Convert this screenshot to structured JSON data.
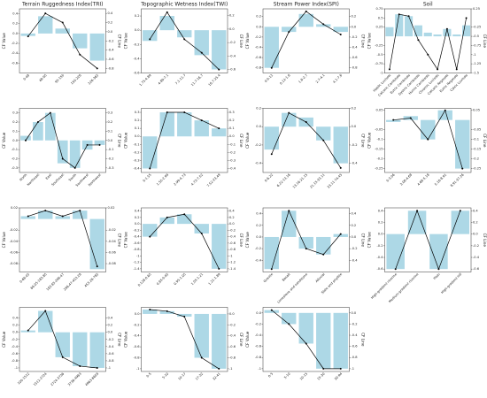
{
  "chart_data": [
    {
      "type": "bar_line",
      "title": "Terrain Ruggedness Index(TRI)",
      "ylabel": "CF Value",
      "y2label": "CF Line",
      "categories": [
        "0-48",
        "48-95",
        "95-150",
        "150-226",
        "226-365"
      ],
      "series": [
        {
          "name": "CF Value",
          "color": "#add8e6",
          "values": [
            -0.05,
            0.35,
            0.1,
            -0.3,
            -0.55
          ]
        },
        {
          "name": "CF Line",
          "color": "#000000",
          "axis": "y2",
          "values": [
            -0.1,
            0.4,
            0.2,
            -0.5,
            -0.8
          ]
        }
      ],
      "ylim": [
        -0.8,
        0.5
      ],
      "yticks": [
        -0.6,
        -0.4,
        -0.2,
        {
          "value": 0,
          "label": "0.0"
        },
        0.2,
        0.4
      ],
      "y2lim": [
        -0.9,
        0.5
      ],
      "y2ticks": [
        -0.8,
        -0.6,
        -0.4,
        -0.2,
        {
          "value": 0,
          "label": "0.0"
        },
        0.2,
        0.4
      ]
    },
    {
      "type": "bar_line",
      "title": "Topographic Wetness Index(TWI)",
      "ylabel": "CF Value",
      "y2label": "CF Line",
      "categories": [
        "1.75-4.89",
        "4.89-7.1",
        "7.1-11.7",
        "11.7-16.7",
        "16.7-25.4"
      ],
      "series": [
        {
          "name": "CF Value",
          "color": "#add8e6",
          "values": [
            -0.15,
            0.2,
            -0.1,
            -0.35,
            -0.55
          ]
        },
        {
          "name": "CF Line",
          "color": "#000000",
          "axis": "y2",
          "values": [
            -0.15,
            0.25,
            -0.15,
            -0.35,
            -0.6
          ]
        }
      ],
      "ylim": [
        -0.6,
        0.3
      ],
      "yticks": [
        -0.6,
        -0.4,
        -0.2,
        {
          "value": 0,
          "label": "0.0"
        },
        0.2
      ],
      "y2lim": [
        -0.65,
        0.3
      ],
      "y2ticks": [
        -0.6,
        -0.4,
        -0.2,
        {
          "value": 0,
          "label": "0.0"
        },
        0.2
      ]
    },
    {
      "type": "bar_line",
      "title": "Stream Power Index(SPI)",
      "ylabel": "CF Value",
      "y2label": "CF Line",
      "categories": [
        "0-0.12",
        "0.12-1.6",
        "1.6-2.7",
        "2.7-4.1",
        "4.1-7.6"
      ],
      "series": [
        {
          "name": "CF Value",
          "color": "#add8e6",
          "values": [
            -0.8,
            -0.1,
            0.25,
            0.05,
            -0.1
          ]
        },
        {
          "name": "CF Line",
          "color": "#000000",
          "axis": "y2",
          "values": [
            -0.8,
            -0.1,
            0.3,
            0.05,
            -0.15
          ]
        }
      ],
      "ylim": [
        -0.9,
        0.35
      ],
      "yticks": [
        -0.8,
        -0.6,
        -0.4,
        -0.2,
        {
          "value": 0,
          "label": "0.0"
        },
        0.2
      ],
      "y2lim": [
        -0.9,
        0.35
      ],
      "y2ticks": [
        -0.8,
        -0.6,
        -0.4,
        -0.2,
        {
          "value": 0,
          "label": "0.0"
        },
        0.2
      ]
    },
    {
      "type": "bar_line",
      "title": "Soil",
      "ylabel": "CF Value",
      "y2label": "CF Line",
      "categories": [
        "Haplic Luvisols",
        "Calcaric Cambisols",
        "Eutric Cambisols",
        "Dystric Cambisols",
        "Humic Cambisols",
        "Chromic Luvisols",
        "Calcaric Regosols",
        "Eutric Regosols",
        "Calcic Luvisols"
      ],
      "series": [
        {
          "name": "CF Value",
          "color": "#add8e6",
          "values": [
            0.25,
            0.6,
            0.55,
            0.3,
            0.1,
            0.05,
            0.2,
            0.05,
            0.3
          ]
        },
        {
          "name": "CF Line",
          "color": "#000000",
          "axis": "y2",
          "values": [
            -1.4,
            0.1,
            0.05,
            -0.6,
            -1,
            -1.4,
            -0.3,
            -1.4,
            0
          ]
        }
      ],
      "ylim": [
        -1,
        0.75
      ],
      "yticks": [
        -1,
        -0.75,
        -0.5,
        -0.25,
        0.25,
        0.5,
        0.75
      ],
      "y2lim": [
        -1.5,
        0.25
      ],
      "y2ticks": [
        -1.5,
        -1.25,
        -1,
        -0.75,
        -0.5,
        -0.25,
        0.25
      ]
    },
    {
      "type": "bar_line",
      "ylabel": "CF Value",
      "y2label": "CF Line",
      "categories": [
        "North",
        "Northeast",
        "East",
        "Southeast",
        "South",
        "Southwest",
        "Northwest"
      ],
      "series": [
        {
          "name": "CF Value",
          "color": "#add8e6",
          "values": [
            0.05,
            0.2,
            0.3,
            -0.25,
            -0.3,
            -0.1,
            -0.05
          ]
        },
        {
          "name": "CF Line",
          "color": "#000000",
          "axis": "y2",
          "values": [
            0,
            0.2,
            0.3,
            -0.2,
            -0.3,
            -0.05,
            -0.05
          ]
        }
      ],
      "ylim": [
        -0.35,
        0.35
      ],
      "yticks": [
        -0.3,
        -0.2,
        -0.1,
        {
          "value": 0,
          "label": "0.0"
        },
        0.1,
        0.2,
        0.3
      ],
      "y2lim": [
        -0.35,
        0.35
      ],
      "y2ticks": [
        -0.3,
        -0.2,
        -0.1,
        {
          "value": 0,
          "label": "0.0"
        },
        0.1,
        0.2,
        0.3
      ]
    },
    {
      "type": "bar_line",
      "ylabel": "CF Value",
      "y2label": "CF Line",
      "categories": [
        "0-1.55",
        "1.55-2.99",
        "2.99-4.73",
        "4.73-7.52",
        "7.52-23.49"
      ],
      "series": [
        {
          "name": "CF Value",
          "color": "#add8e6",
          "values": [
            -0.4,
            0.3,
            0.3,
            0.2,
            0.1
          ]
        },
        {
          "name": "CF Line",
          "color": "#000000",
          "axis": "y2",
          "values": [
            -0.4,
            0.3,
            0.3,
            0.2,
            0.1
          ]
        }
      ],
      "ylim": [
        -0.45,
        0.35
      ],
      "yticks": [
        -0.4,
        -0.3,
        -0.2,
        -0.1,
        {
          "value": 0,
          "label": "0.0"
        },
        0.1,
        0.2,
        0.3
      ],
      "y2lim": [
        -0.45,
        0.35
      ],
      "y2ticks": [
        -0.4,
        -0.3,
        -0.2,
        -0.1,
        {
          "value": 0,
          "label": "0.0"
        },
        0.1,
        0.2,
        0.3
      ]
    },
    {
      "type": "bar_line",
      "ylabel": "CF Value",
      "y2label": "CF Line",
      "categories": [
        "0-6.22",
        "6.22-13.16",
        "13.16-21.15",
        "21.15-33.11",
        "33.11-74.45"
      ],
      "series": [
        {
          "name": "CF Value",
          "color": "#add8e6",
          "values": [
            -0.25,
            0.15,
            0.1,
            -0.15,
            -0.4
          ]
        },
        {
          "name": "CF Line",
          "color": "#000000",
          "axis": "y2",
          "values": [
            -0.3,
            0.15,
            0.05,
            -0.15,
            -0.45
          ]
        }
      ],
      "ylim": [
        -0.5,
        0.2
      ],
      "yticks": [
        -0.4,
        -0.2,
        {
          "value": 0,
          "label": "0.0"
        },
        0.2
      ],
      "y2lim": [
        -0.5,
        0.2
      ],
      "y2ticks": [
        -0.4,
        -0.2,
        {
          "value": 0,
          "label": "0.0"
        },
        0.2
      ]
    },
    {
      "type": "bar_line",
      "ylabel": "CF Value",
      "y2label": "CF Line",
      "categories": [
        "0-3.06",
        "3.06-4.68",
        "4.68-5.18",
        "5.18-8.91",
        "8.91-37.26"
      ],
      "series": [
        {
          "name": "CF Value",
          "color": "#add8e6",
          "values": [
            -0.01,
            0.02,
            -0.1,
            0.05,
            -0.25
          ]
        },
        {
          "name": "CF Line",
          "color": "#000000",
          "axis": "y2",
          "values": [
            0,
            0.01,
            -0.1,
            0.05,
            -0.25
          ]
        }
      ],
      "ylim": [
        -0.27,
        0.06
      ],
      "yticks": [
        -0.25,
        -0.2,
        -0.15,
        -0.1,
        -0.05,
        0.05
      ],
      "y2lim": [
        -0.27,
        0.06
      ],
      "y2ticks": [
        -0.25,
        -0.2,
        -0.15,
        -0.1,
        -0.05,
        0.05
      ]
    },
    {
      "type": "bar_line",
      "ylabel": "CF Value",
      "y2label": "CF Line",
      "categories": [
        "0-66.05",
        "66.05-183.85",
        "183.85-296.47",
        "296.47-453.28",
        "453.28-785"
      ],
      "series": [
        {
          "name": "CF Value",
          "color": "#add8e6",
          "values": [
            0.005,
            0.015,
            0.005,
            0.015,
            -0.09
          ]
        },
        {
          "name": "CF Line",
          "color": "#000000",
          "axis": "y2",
          "values": [
            0.005,
            0.015,
            0.005,
            0.015,
            -0.085
          ]
        }
      ],
      "ylim": [
        -0.095,
        0.02
      ],
      "yticks": [
        -0.08,
        -0.06,
        -0.04,
        -0.02,
        0.02
      ],
      "y2lim": [
        -0.095,
        0.02
      ],
      "y2ticks": [
        -0.08,
        -0.06,
        -0.04,
        -0.02,
        0.02
      ]
    },
    {
      "type": "bar_line",
      "ylabel": "CF Value",
      "y2label": "CF Line",
      "categories": [
        "0.128-0.65",
        "0.65-0.95",
        "0.95-1.05",
        "1.05-1.21",
        "1.21-1.89"
      ],
      "series": [
        {
          "name": "CF Value",
          "color": "#add8e6",
          "values": [
            -0.4,
            0.2,
            0.3,
            -0.3,
            -1.4
          ]
        },
        {
          "name": "CF Line",
          "color": "#000000",
          "axis": "y2",
          "values": [
            -0.4,
            0.2,
            0.3,
            -0.3,
            -1.4
          ]
        }
      ],
      "ylim": [
        -1.5,
        0.5
      ],
      "yticks": [
        -1.4,
        -1.2,
        -1,
        -0.8,
        -0.6,
        -0.4,
        -0.2,
        {
          "value": 0,
          "label": "0.0"
        },
        0.2,
        0.4
      ],
      "y2lim": [
        -1.5,
        0.5
      ],
      "y2ticks": [
        -1.4,
        -1.2,
        -1,
        -0.8,
        -0.6,
        -0.4,
        -0.2,
        {
          "value": 0,
          "label": "0.0"
        },
        0.2,
        0.4
      ]
    },
    {
      "type": "bar_line",
      "ylabel": "CF Value",
      "y2label": "CF Line",
      "categories": [
        "Granite",
        "Basalt",
        "Limestone and sandstone",
        "Alluvial",
        "Slate and phyllite"
      ],
      "series": [
        {
          "name": "CF Value",
          "color": "#add8e6",
          "values": [
            -0.55,
            0.45,
            -0.2,
            -0.3,
            0.05
          ]
        },
        {
          "name": "CF Line",
          "color": "#000000",
          "axis": "y2",
          "values": [
            -0.55,
            0.45,
            -0.2,
            -0.3,
            0.05
          ]
        }
      ],
      "ylim": [
        -0.6,
        0.5
      ],
      "yticks": [
        -0.4,
        -0.2,
        {
          "value": 0,
          "label": "0.0"
        },
        0.2,
        0.4
      ],
      "y2lim": [
        -0.6,
        0.5
      ],
      "y2ticks": [
        -0.4,
        -0.2,
        {
          "value": 0,
          "label": "0.0"
        },
        0.2,
        0.4
      ]
    },
    {
      "type": "bar_line",
      "ylabel": "CF Value",
      "y2label": "CF Line",
      "categories": [
        "High-gradient riverine",
        "Medium-gradient riverine",
        "Plain",
        "High-gradient hill"
      ],
      "series": [
        {
          "name": "CF Value",
          "color": "#add8e6",
          "values": [
            -0.6,
            0.4,
            -0.6,
            0.4
          ]
        },
        {
          "name": "CF Line",
          "color": "#000000",
          "axis": "y2",
          "values": [
            -0.6,
            0.4,
            -0.6,
            0.4
          ]
        }
      ],
      "ylim": [
        -0.65,
        0.45
      ],
      "yticks": [
        -0.6,
        -0.4,
        -0.2,
        {
          "value": 0,
          "label": "0.0"
        },
        0.2,
        0.4
      ],
      "y2lim": [
        -0.65,
        0.45
      ],
      "y2ticks": [
        -0.6,
        -0.4,
        -0.2,
        {
          "value": 0,
          "label": "0.0"
        },
        0.2,
        0.4
      ]
    },
    {
      "type": "bar_line",
      "ylabel": "CF Value",
      "y2label": "CF Line",
      "categories": [
        "100-1512",
        "1512-2724",
        "2724-3736",
        "3736-4963",
        "4963-6659"
      ],
      "series": [
        {
          "name": "CF Value",
          "color": "#add8e6",
          "values": [
            0.05,
            0.6,
            -0.7,
            -0.95,
            -1
          ]
        },
        {
          "name": "CF Line",
          "color": "#000000",
          "axis": "y2",
          "values": [
            0.05,
            0.6,
            -0.7,
            -0.95,
            -1
          ]
        }
      ],
      "ylim": [
        -1.1,
        0.7
      ],
      "yticks": [
        -1,
        -0.8,
        -0.6,
        -0.4,
        -0.2,
        {
          "value": 0,
          "label": "0.0"
        },
        0.2,
        0.4
      ],
      "y2lim": [
        -1.1,
        0.7
      ],
      "y2ticks": [
        -1,
        -0.8,
        -0.6,
        -0.4,
        -0.2,
        {
          "value": 0,
          "label": "0.0"
        },
        0.2,
        0.4
      ]
    },
    {
      "type": "bar_line",
      "ylabel": "CF Value",
      "y2label": "CF Line",
      "categories": [
        "0-5",
        "5-10",
        "10-17",
        "17-32",
        "32-41"
      ],
      "series": [
        {
          "name": "CF Value",
          "color": "#add8e6",
          "values": [
            0.08,
            0.05,
            -0.05,
            -0.8,
            -1
          ]
        },
        {
          "name": "CF Line",
          "color": "#000000",
          "axis": "y2",
          "values": [
            0.08,
            0.05,
            -0.05,
            -0.8,
            -1
          ]
        }
      ],
      "ylim": [
        -1.05,
        0.12
      ],
      "yticks": [
        -1,
        -0.8,
        -0.6,
        -0.4,
        -0.2,
        {
          "value": 0,
          "label": "0.0"
        }
      ],
      "y2lim": [
        -1.05,
        0.12
      ],
      "y2ticks": [
        -1,
        -0.8,
        -0.6,
        -0.4,
        -0.2,
        {
          "value": 0,
          "label": "0.0"
        }
      ]
    },
    {
      "type": "bar_line",
      "ylabel": "CF Value",
      "y2label": "CF Line",
      "categories": [
        "0-5",
        "5-10",
        "10-15",
        "15-30",
        "30-94"
      ],
      "series": [
        {
          "name": "CF Value",
          "color": "#add8e6",
          "values": [
            0.05,
            -0.2,
            -0.55,
            -1,
            -1
          ]
        },
        {
          "name": "CF Line",
          "color": "#000000",
          "axis": "y2",
          "values": [
            0.05,
            -0.2,
            -0.55,
            -1,
            -1
          ]
        }
      ],
      "ylim": [
        -1.05,
        0.1
      ],
      "yticks": [
        -1,
        -0.8,
        -0.6,
        -0.4,
        -0.2,
        {
          "value": 0,
          "label": "0.0"
        }
      ],
      "y2lim": [
        -1.05,
        0.1
      ],
      "y2ticks": [
        -1,
        -0.8,
        -0.6,
        -0.4,
        -0.2,
        {
          "value": 0,
          "label": "0.0"
        }
      ]
    }
  ]
}
